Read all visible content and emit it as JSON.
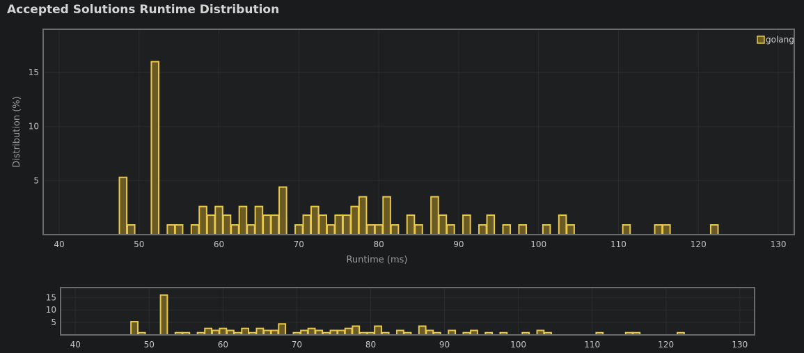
{
  "title": "Accepted Solutions Runtime Distribution",
  "chart_data": {
    "type": "bar",
    "title": "Accepted Solutions Runtime Distribution",
    "xlabel": "Runtime (ms)",
    "ylabel": "Distribution (%)",
    "xlim": [
      38,
      132
    ],
    "ylim": [
      0,
      19
    ],
    "x_ticks": [
      40,
      50,
      60,
      70,
      80,
      90,
      100,
      110,
      120,
      130
    ],
    "y_ticks": [
      5,
      10,
      15
    ],
    "navigator_y_ticks": [
      5,
      10,
      15
    ],
    "grid": true,
    "legend_position": "top-right",
    "bar_color": "#e8c94a",
    "bar_fill": "#6a5a24",
    "series": [
      {
        "name": "golang",
        "x": [
          48,
          49,
          52,
          54,
          55,
          57,
          58,
          59,
          60,
          61,
          62,
          63,
          64,
          65,
          66,
          67,
          68,
          70,
          71,
          72,
          73,
          74,
          75,
          76,
          77,
          78,
          79,
          80,
          81,
          82,
          84,
          85,
          87,
          88,
          89,
          91,
          93,
          94,
          96,
          98,
          101,
          103,
          104,
          111,
          115,
          116,
          122
        ],
        "values": [
          5.3,
          0.9,
          16,
          0.9,
          0.9,
          0.9,
          2.6,
          1.8,
          2.6,
          1.8,
          0.9,
          2.6,
          0.9,
          2.6,
          1.8,
          1.8,
          4.4,
          0.9,
          1.8,
          2.6,
          1.8,
          0.9,
          1.8,
          1.8,
          2.6,
          3.5,
          0.9,
          0.9,
          3.5,
          0.9,
          1.8,
          0.9,
          3.5,
          1.8,
          0.9,
          1.8,
          0.9,
          1.8,
          0.9,
          0.9,
          0.9,
          1.8,
          0.9,
          0.9,
          0.9,
          0.9,
          0.9
        ]
      }
    ]
  }
}
